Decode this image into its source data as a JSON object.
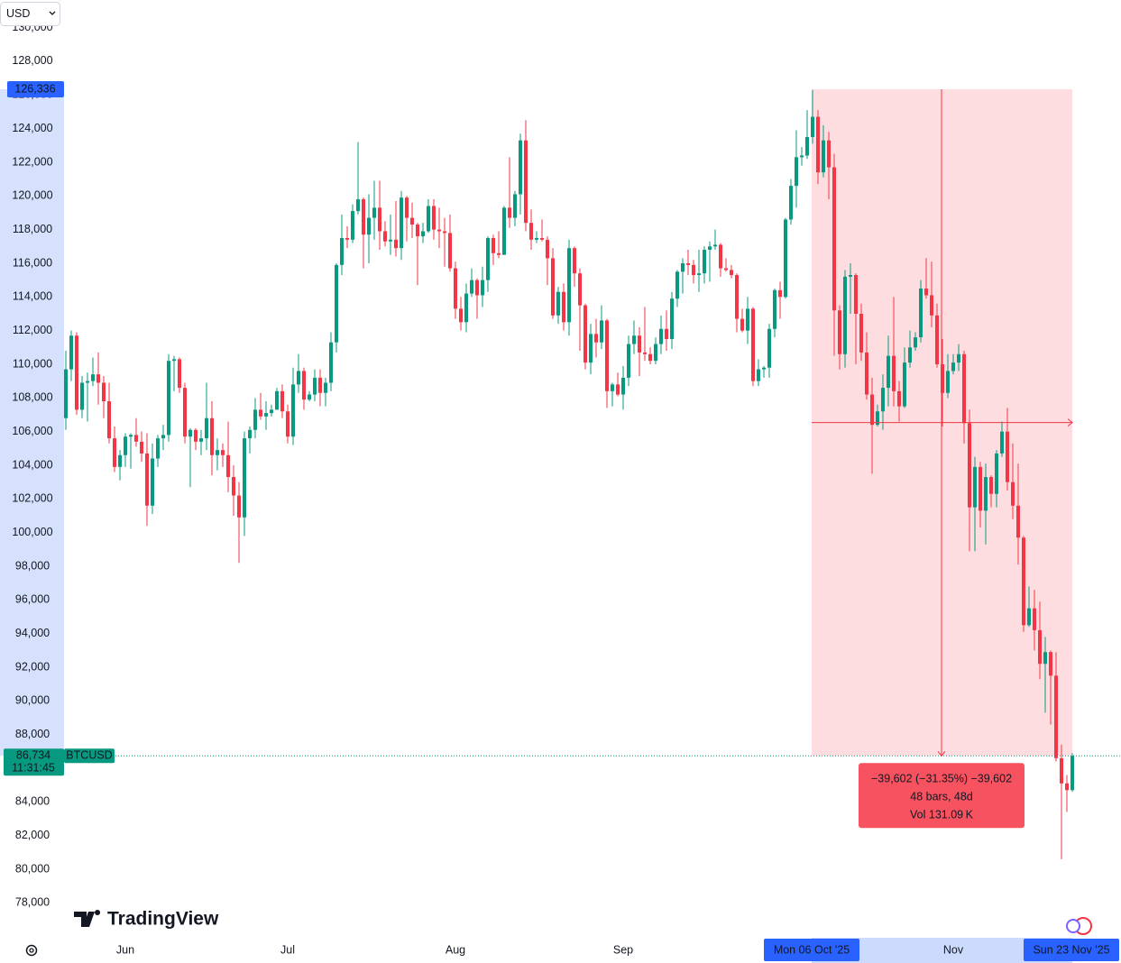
{
  "chart_data": {
    "type": "candlestick",
    "currency": "USD",
    "brand": "TradingView",
    "symbol": "BTCUSD",
    "countdown": "11:31:45",
    "last_price": {
      "value": 86734,
      "label": "86,734"
    },
    "measure": {
      "top": {
        "value": 126336,
        "label": "126,336"
      },
      "lines": [
        "−39,602 (−31.35%) −39,602",
        "48 bars, 48d",
        "Vol 131.09 K"
      ]
    },
    "up_color": "#089981",
    "down_color": "#f23645",
    "ylim": [
      75930,
      131640
    ],
    "yticks": [
      {
        "value": 78000,
        "label": "78,000"
      },
      {
        "value": 80000,
        "label": "80,000"
      },
      {
        "value": 82000,
        "label": "82,000"
      },
      {
        "value": 84000,
        "label": "84,000"
      },
      {
        "value": 86000,
        "label": "86,000"
      },
      {
        "value": 88000,
        "label": "88,000"
      },
      {
        "value": 90000,
        "label": "90,000"
      },
      {
        "value": 92000,
        "label": "92,000"
      },
      {
        "value": 94000,
        "label": "94,000"
      },
      {
        "value": 96000,
        "label": "96,000"
      },
      {
        "value": 98000,
        "label": "98,000"
      },
      {
        "value": 100000,
        "label": "100,000"
      },
      {
        "value": 102000,
        "label": "102,000"
      },
      {
        "value": 104000,
        "label": "104,000"
      },
      {
        "value": 106000,
        "label": "106,000"
      },
      {
        "value": 108000,
        "label": "108,000"
      },
      {
        "value": 110000,
        "label": "110,000"
      },
      {
        "value": 112000,
        "label": "112,000"
      },
      {
        "value": 114000,
        "label": "114,000"
      },
      {
        "value": 116000,
        "label": "116,000"
      },
      {
        "value": 118000,
        "label": "118,000"
      },
      {
        "value": 120000,
        "label": "120,000"
      },
      {
        "value": 122000,
        "label": "122,000"
      },
      {
        "value": 124000,
        "label": "124,000"
      },
      {
        "value": 126000,
        "label": "126,000"
      },
      {
        "value": 128000,
        "label": "128,000"
      },
      {
        "value": 130000,
        "label": "130,000"
      }
    ],
    "categories": [
      null,
      null,
      null,
      null,
      null,
      null,
      null,
      null,
      null,
      null,
      null,
      "Jun",
      null,
      null,
      null,
      null,
      null,
      null,
      null,
      null,
      null,
      null,
      null,
      null,
      null,
      null,
      null,
      null,
      null,
      null,
      null,
      null,
      null,
      null,
      null,
      null,
      null,
      null,
      null,
      null,
      null,
      "Jul",
      null,
      null,
      null,
      null,
      null,
      null,
      null,
      null,
      null,
      null,
      null,
      null,
      null,
      null,
      null,
      null,
      null,
      null,
      null,
      null,
      null,
      null,
      null,
      null,
      null,
      null,
      null,
      null,
      null,
      null,
      "Aug",
      null,
      null,
      null,
      null,
      null,
      null,
      null,
      null,
      null,
      null,
      null,
      null,
      null,
      null,
      null,
      null,
      null,
      null,
      null,
      null,
      null,
      null,
      null,
      null,
      null,
      null,
      null,
      null,
      null,
      null,
      "Sep",
      null,
      null,
      null,
      null,
      null,
      null,
      null,
      null,
      null,
      null,
      null,
      null,
      null,
      null,
      null,
      null,
      null,
      null,
      null,
      null,
      null,
      null,
      null,
      null,
      null,
      null,
      null,
      null,
      null,
      null,
      null,
      null,
      null,
      null,
      "Mon 06 Oct '25",
      null,
      null,
      null,
      null,
      null,
      null,
      null,
      null,
      null,
      null,
      null,
      null,
      null,
      null,
      null,
      null,
      null,
      null,
      null,
      null,
      null,
      null,
      null,
      null,
      null,
      "Nov",
      null,
      null,
      null,
      null,
      null,
      null,
      null,
      null,
      null,
      null,
      null,
      null,
      null,
      null,
      null,
      null,
      null,
      null,
      null,
      null,
      null,
      "Sun 23 Nov '25"
    ],
    "open": [
      106800,
      109700,
      111700,
      107300,
      108900,
      109000,
      109400,
      108900,
      107800,
      105600,
      103900,
      104600,
      105700,
      105800,
      105400,
      104700,
      101600,
      104400,
      105600,
      105800,
      110200,
      110300,
      108600,
      105700,
      106100,
      105400,
      105600,
      106800,
      104600,
      104900,
      104600,
      103300,
      102200,
      100900,
      105600,
      106100,
      107300,
      106900,
      107100,
      107300,
      108400,
      107200,
      105700,
      108800,
      109600,
      107900,
      108200,
      109200,
      108300,
      108900,
      111300,
      115900,
      117500,
      117400,
      119100,
      119800,
      117700,
      118700,
      119300,
      117900,
      117300,
      117400,
      116900,
      119900,
      118700,
      118300,
      117600,
      117900,
      119400,
      118000,
      117900,
      117800,
      115700,
      113300,
      112500,
      114200,
      115000,
      114100,
      115000,
      117500,
      116600,
      116500,
      119300,
      118700,
      120100,
      123300,
      118400,
      117400,
      117500,
      117400,
      116300,
      112900,
      114300,
      112500,
      116900,
      115400,
      113500,
      110100,
      111800,
      111300,
      112600,
      108400,
      108800,
      108200,
      109200,
      111200,
      111700,
      110700,
      110600,
      110200,
      111200,
      112100,
      111500,
      113900,
      115500,
      116000,
      115900,
      115300,
      115400,
      116800,
      117000,
      117100,
      115700,
      115600,
      115300,
      112700,
      112000,
      113300,
      109000,
      109700,
      109800,
      112100,
      114400,
      114000,
      118600,
      120600,
      122300,
      122400,
      123500,
      124700,
      121400,
      123300,
      121700,
      113200,
      110600,
      115200,
      115300,
      113000,
      110700,
      108200,
      106400,
      107200,
      108600,
      110500,
      108400,
      107500,
      110100,
      111000,
      111600,
      114500,
      114100,
      112900,
      110000,
      108300,
      109600,
      110100,
      110600,
      106500,
      101500,
      103900,
      101300,
      103300,
      102300,
      104700,
      106000,
      103000,
      101600,
      99700,
      94500,
      95500,
      94200,
      92200,
      92900,
      91500,
      86600,
      85100,
      84700
    ],
    "high": [
      110800,
      112000,
      111900,
      109300,
      109500,
      110400,
      110700,
      109300,
      108900,
      106300,
      104900,
      105900,
      105900,
      106800,
      106000,
      105900,
      105300,
      105800,
      106400,
      110600,
      110500,
      110400,
      108900,
      106200,
      106200,
      106100,
      108900,
      107800,
      105600,
      105300,
      106600,
      104000,
      103000,
      106000,
      106300,
      108000,
      108300,
      107800,
      107600,
      108600,
      108800,
      107600,
      109800,
      110600,
      109800,
      108400,
      109700,
      109700,
      109200,
      111900,
      116000,
      118900,
      118200,
      119500,
      123200,
      119900,
      120100,
      120900,
      120900,
      118500,
      118900,
      119700,
      120300,
      120000,
      119600,
      118400,
      118400,
      119800,
      119800,
      119300,
      118700,
      118900,
      116100,
      114000,
      114800,
      115700,
      115100,
      115800,
      117600,
      117700,
      117900,
      119400,
      122300,
      120300,
      123700,
      124500,
      119200,
      117900,
      118600,
      117600,
      116900,
      114600,
      114800,
      117400,
      117000,
      115700,
      113600,
      112400,
      112700,
      113500,
      112700,
      108900,
      109500,
      109900,
      111700,
      112600,
      112200,
      113400,
      111000,
      111600,
      112900,
      113200,
      114300,
      115600,
      116300,
      116800,
      116200,
      116800,
      117000,
      117300,
      118000,
      117200,
      116300,
      115900,
      115400,
      113300,
      114000,
      113400,
      110300,
      109900,
      112400,
      114500,
      114900,
      118700,
      121000,
      123900,
      122900,
      125100,
      126300,
      125100,
      124200,
      123800,
      122500,
      113500,
      115600,
      116000,
      115400,
      113600,
      111900,
      109200,
      107600,
      109400,
      111700,
      114000,
      109000,
      111000,
      112000,
      111900,
      115000,
      116300,
      116100,
      113600,
      111500,
      110600,
      110600,
      111200,
      110800,
      107300,
      104500,
      104200,
      104100,
      103400,
      104900,
      106600,
      107400,
      105300,
      104100,
      99800,
      96800,
      96600,
      95900,
      93800,
      93000,
      92900,
      87400,
      85600,
      86900
    ],
    "low": [
      106100,
      109000,
      107000,
      106800,
      106600,
      108700,
      107600,
      106800,
      105300,
      103600,
      103100,
      103900,
      103800,
      105100,
      104200,
      100400,
      101100,
      103900,
      104900,
      105400,
      108400,
      108300,
      105300,
      102700,
      104900,
      104600,
      104900,
      103400,
      103700,
      103900,
      102400,
      101000,
      98200,
      99800,
      104700,
      105600,
      106700,
      106100,
      106900,
      107300,
      106800,
      105300,
      105200,
      108300,
      107300,
      107800,
      107800,
      107500,
      107500,
      108400,
      110700,
      115300,
      116900,
      117200,
      118900,
      115700,
      116000,
      117400,
      116800,
      117000,
      116500,
      116400,
      116200,
      117300,
      117500,
      114700,
      117200,
      117800,
      117400,
      116900,
      115800,
      115500,
      112700,
      112000,
      111900,
      114000,
      112700,
      113400,
      114300,
      115900,
      116300,
      116500,
      118100,
      118200,
      118900,
      117900,
      116800,
      117200,
      117300,
      114700,
      112700,
      112400,
      112000,
      111700,
      114600,
      110800,
      109700,
      109400,
      110400,
      110900,
      107400,
      107500,
      108100,
      107300,
      108700,
      110600,
      109300,
      110200,
      110000,
      110000,
      110600,
      110800,
      110900,
      113400,
      114200,
      115300,
      114800,
      114300,
      114800,
      114900,
      116800,
      115200,
      115500,
      115100,
      111900,
      111900,
      111200,
      108700,
      108700,
      109200,
      109200,
      111600,
      112700,
      113900,
      118300,
      119300,
      121800,
      122200,
      123100,
      120700,
      121100,
      119800,
      110500,
      109700,
      109800,
      113000,
      110000,
      110200,
      107900,
      103500,
      106300,
      106100,
      107500,
      107500,
      106600,
      107400,
      109800,
      110800,
      111300,
      113900,
      112200,
      109800,
      106300,
      108000,
      109400,
      109600,
      105300,
      98900,
      98900,
      100300,
      99300,
      101500,
      101500,
      104500,
      102500,
      100800,
      98100,
      94100,
      94400,
      93000,
      91300,
      89300,
      88600,
      86400,
      80600,
      83400,
      84600
    ],
    "close": [
      109700,
      111700,
      107300,
      108900,
      109000,
      109400,
      108900,
      107800,
      105600,
      103900,
      104600,
      105700,
      105800,
      105400,
      104700,
      101600,
      104400,
      105600,
      105800,
      110200,
      110300,
      108600,
      105700,
      106100,
      105400,
      105600,
      106800,
      104600,
      104900,
      104600,
      103300,
      102200,
      100900,
      105600,
      106100,
      107300,
      106900,
      107100,
      107300,
      108400,
      107200,
      105700,
      108800,
      109600,
      107900,
      108200,
      109200,
      108300,
      108900,
      111300,
      115900,
      117500,
      117400,
      119100,
      119800,
      117700,
      118700,
      119300,
      117900,
      117300,
      117400,
      116900,
      119900,
      118700,
      118300,
      117600,
      117900,
      119400,
      118000,
      117900,
      117800,
      115700,
      113300,
      112500,
      114200,
      115000,
      114100,
      115000,
      117500,
      116600,
      116500,
      119300,
      118700,
      120100,
      123300,
      118400,
      117400,
      117500,
      117400,
      116300,
      112900,
      114300,
      112500,
      116900,
      115400,
      113500,
      110100,
      111800,
      111300,
      112600,
      108400,
      108800,
      108200,
      109200,
      111200,
      111700,
      110700,
      110600,
      110200,
      111200,
      112100,
      111500,
      113900,
      115500,
      116000,
      115900,
      115300,
      115400,
      116800,
      117000,
      117100,
      115700,
      115600,
      115300,
      112700,
      112000,
      113300,
      109000,
      109700,
      109800,
      112100,
      114400,
      114000,
      118600,
      120600,
      122300,
      122400,
      123500,
      124700,
      121400,
      123300,
      121700,
      113200,
      110600,
      115200,
      115300,
      113000,
      110700,
      108200,
      106400,
      107200,
      108600,
      110500,
      108400,
      107500,
      110100,
      111000,
      111600,
      114500,
      114100,
      112900,
      110000,
      108300,
      109600,
      110100,
      110600,
      106500,
      101500,
      103900,
      101300,
      103300,
      102300,
      104700,
      106000,
      103000,
      101600,
      99700,
      94500,
      95500,
      94200,
      92200,
      92900,
      91500,
      86600,
      85100,
      84700,
      86734
    ]
  }
}
